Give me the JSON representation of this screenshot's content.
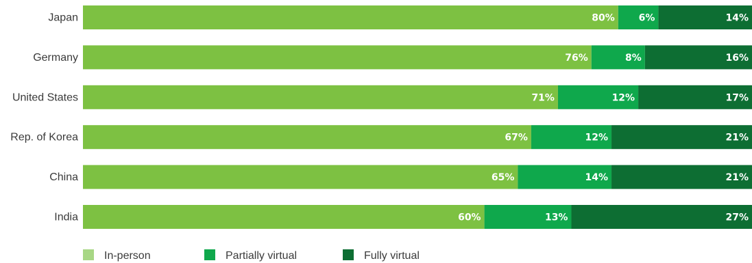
{
  "chart_data": {
    "type": "bar",
    "orientation": "horizontal",
    "stacked": true,
    "categories": [
      "Japan",
      "Germany",
      "United States",
      "Rep. of Korea",
      "China",
      "India"
    ],
    "series": [
      {
        "name": "In-person",
        "color": "#7dc142",
        "values": [
          80,
          76,
          71,
          67,
          65,
          60
        ]
      },
      {
        "name": "Partially virtual",
        "color": "#0fa84c",
        "values": [
          6,
          8,
          12,
          12,
          14,
          13
        ]
      },
      {
        "name": "Fully virtual",
        "color": "#0d6e33",
        "values": [
          14,
          16,
          17,
          21,
          21,
          27
        ]
      }
    ],
    "value_labels": [
      [
        "80%",
        "76%",
        "71%",
        "67%",
        "65%",
        "60%"
      ],
      [
        "6%",
        "8%",
        "12%",
        "12%",
        "14%",
        "13%"
      ],
      [
        "14%",
        "16%",
        "17%",
        "21%",
        "21%",
        "27%"
      ]
    ],
    "legend": {
      "position": "bottom-left",
      "items": [
        {
          "label": "In-person",
          "color": "#a8d785"
        },
        {
          "label": "Partially virtual",
          "color": "#0fa84c"
        },
        {
          "label": "Fully virtual",
          "color": "#0d6e33"
        }
      ]
    },
    "xlim": [
      0,
      100
    ],
    "grid": false
  }
}
